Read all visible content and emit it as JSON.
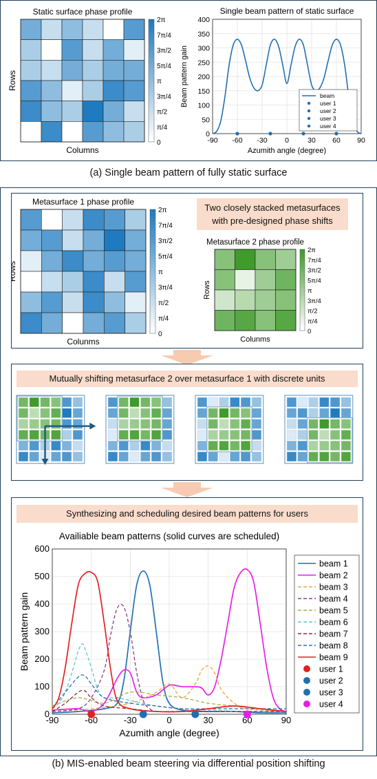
{
  "colors": {
    "blue_dark": "#1f7bc0",
    "green_dark": "#3f9b2a",
    "banner_bg": "#f9dccb",
    "frame": "#1f3f57",
    "arrow_fill": "#f7cbb1",
    "beam_blue": "#1f6fb2",
    "beam_magenta": "#e81ee8",
    "beam_red": "#e32020",
    "user_red": "#e32020",
    "user_blue": "#1f6fb2",
    "user_magenta": "#e81ee8"
  },
  "caption_a": "(a) Single beam pattern of fully static surface",
  "caption_b": "(b) MIS-enabled beam steering via differential position shifting",
  "static_heatmap": {
    "title": "Static surface phase profile",
    "xlabel": "Columns",
    "ylabel": "Rows",
    "colorbar_ticks": [
      "2π",
      "7π/4",
      "3π/2",
      "5π/4",
      "π",
      "3π/4",
      "π/2",
      "π/4",
      "0"
    ],
    "grid": [
      [
        5,
        2,
        4,
        2,
        0,
        6
      ],
      [
        3,
        0,
        6,
        2,
        5,
        1
      ],
      [
        3,
        2,
        5,
        3,
        5,
        5
      ],
      [
        6,
        4,
        1,
        3,
        7,
        6
      ],
      [
        7,
        4,
        3,
        8,
        5,
        2
      ],
      [
        0,
        7,
        0,
        6,
        4,
        3
      ]
    ]
  },
  "static_beam": {
    "title": "Single beam pattern of static surface",
    "xlabel": "Azumith angle (degree)",
    "ylabel": "Beam pattern gain",
    "x_ticks": [
      "-90",
      "-60",
      "-30",
      "0",
      "30",
      "60",
      "90"
    ],
    "y_ticks": [
      "0",
      "50",
      "100",
      "150",
      "200",
      "250",
      "300",
      "350",
      "400"
    ],
    "legend": [
      "beam",
      "user 1",
      "user 2",
      "user 3",
      "user 4"
    ]
  },
  "chart_data": [
    {
      "type": "line",
      "title": "Single beam pattern of static surface",
      "xlabel": "Azumith angle (degree)",
      "ylabel": "Beam pattern gain",
      "xlim": [
        -90,
        90
      ],
      "ylim": [
        0,
        400
      ],
      "grid": true,
      "legend_position": "bottom-right",
      "series": [
        {
          "name": "beam",
          "x": [
            -90,
            -85,
            -80,
            -75,
            -70,
            -65,
            -60,
            -55,
            -50,
            -45,
            -40,
            -35,
            -30,
            -25,
            -20,
            -15,
            -10,
            -5,
            0,
            5,
            10,
            15,
            20,
            25,
            30,
            35,
            40,
            45,
            50,
            55,
            60,
            65,
            70,
            75,
            80,
            85,
            90
          ],
          "y": [
            0,
            8,
            45,
            130,
            240,
            310,
            330,
            310,
            255,
            195,
            160,
            150,
            170,
            240,
            310,
            330,
            305,
            240,
            175,
            240,
            305,
            330,
            310,
            240,
            170,
            150,
            160,
            195,
            255,
            310,
            330,
            310,
            240,
            130,
            45,
            8,
            0
          ]
        }
      ],
      "users": {
        "user 1": -60,
        "user 2": -20,
        "user 3": 20,
        "user 4": 60
      }
    },
    {
      "type": "line",
      "title": "Availiable beam patterns (solid curves are scheduled)",
      "xlabel": "Azumith angle (degree)",
      "ylabel": "Beam pattern gain",
      "xlim": [
        -90,
        90
      ],
      "ylim": [
        0,
        600
      ],
      "grid": true,
      "legend_position": "right",
      "series": [
        {
          "name": "beam 1",
          "style": "solid",
          "color": "#1f6fb2",
          "x": [
            -90,
            -70,
            -50,
            -40,
            -35,
            -30,
            -25,
            -20,
            -15,
            -10,
            -5,
            0,
            10,
            30,
            50,
            70,
            90
          ],
          "y": [
            5,
            10,
            20,
            40,
            120,
            300,
            470,
            520,
            470,
            300,
            120,
            40,
            15,
            10,
            10,
            5,
            5
          ]
        },
        {
          "name": "beam 2",
          "style": "solid",
          "color": "#e81ee8",
          "x": [
            -90,
            -70,
            -60,
            -50,
            -40,
            -35,
            -30,
            -25,
            -20,
            -10,
            0,
            10,
            20,
            25,
            30,
            35,
            40,
            45,
            50,
            55,
            60,
            65,
            70,
            75,
            80,
            85,
            90
          ],
          "y": [
            15,
            20,
            10,
            40,
            130,
            160,
            150,
            80,
            60,
            70,
            105,
            100,
            100,
            95,
            70,
            100,
            200,
            330,
            460,
            515,
            525,
            480,
            330,
            170,
            60,
            20,
            10
          ]
        },
        {
          "name": "beam 3",
          "style": "dashed",
          "color": "#e8a640",
          "x": [
            -90,
            -60,
            -30,
            -10,
            0,
            10,
            20,
            25,
            30,
            35,
            40,
            50,
            60,
            90
          ],
          "y": [
            10,
            20,
            40,
            80,
            110,
            60,
            110,
            160,
            175,
            150,
            90,
            40,
            20,
            10
          ]
        },
        {
          "name": "beam 4",
          "style": "dashed",
          "color": "#8a3a8a",
          "x": [
            -90,
            -70,
            -60,
            -50,
            -45,
            -40,
            -35,
            -30,
            -25,
            -20,
            -15,
            -10,
            0,
            30,
            60,
            90
          ],
          "y": [
            10,
            20,
            60,
            160,
            290,
            385,
            390,
            300,
            150,
            50,
            20,
            10,
            10,
            10,
            10,
            10
          ]
        },
        {
          "name": "beam 5",
          "style": "dashed",
          "color": "#a6b03a",
          "x": [
            -90,
            -70,
            -50,
            -30,
            -10,
            10,
            30,
            50,
            70,
            90
          ],
          "y": [
            30,
            60,
            40,
            80,
            70,
            60,
            40,
            30,
            20,
            10
          ]
        },
        {
          "name": "beam 6",
          "style": "dashed",
          "color": "#5ec3d9",
          "x": [
            -90,
            -85,
            -80,
            -75,
            -70,
            -67,
            -65,
            -60,
            -55,
            -50,
            -40,
            -30,
            -10,
            10,
            30,
            60,
            90
          ],
          "y": [
            20,
            40,
            80,
            150,
            230,
            255,
            240,
            170,
            90,
            60,
            60,
            50,
            30,
            20,
            15,
            10,
            10
          ]
        },
        {
          "name": "beam 7",
          "style": "dashed",
          "color": "#8a2a3a",
          "x": [
            -90,
            -80,
            -70,
            -65,
            -60,
            -50,
            -30,
            -10,
            10,
            30,
            60,
            90
          ],
          "y": [
            10,
            40,
            80,
            85,
            60,
            30,
            20,
            10,
            10,
            10,
            10,
            10
          ]
        },
        {
          "name": "beam 8",
          "style": "dashed",
          "color": "#2a6fa8",
          "x": [
            -90,
            -80,
            -70,
            -65,
            -60,
            -50,
            -30,
            -10,
            10,
            30,
            60,
            90
          ],
          "y": [
            20,
            80,
            135,
            140,
            110,
            60,
            40,
            30,
            20,
            20,
            20,
            20
          ]
        },
        {
          "name": "beam 9",
          "style": "solid",
          "color": "#e32020",
          "x": [
            -90,
            -85,
            -80,
            -75,
            -70,
            -65,
            -60,
            -55,
            -50,
            -45,
            -40,
            -30,
            -10,
            10,
            30,
            50,
            70,
            90
          ],
          "y": [
            20,
            60,
            170,
            330,
            470,
            510,
            515,
            480,
            330,
            160,
            50,
            20,
            10,
            10,
            20,
            30,
            20,
            10
          ]
        }
      ],
      "users": [
        {
          "name": "user 1",
          "x": -60,
          "color": "#e32020"
        },
        {
          "name": "user 2",
          "x": -20,
          "color": "#1f6fb2"
        },
        {
          "name": "user 3",
          "x": 20,
          "color": "#1f6fb2"
        },
        {
          "name": "user 4",
          "x": 60,
          "color": "#e81ee8"
        }
      ]
    }
  ],
  "ms1": {
    "title": "Metasurface 1 phase profile",
    "xlabel": "Colunms",
    "ylabel": "Rows",
    "colorbar_ticks": [
      "2π",
      "7π/4",
      "3π/2",
      "5π/4",
      "π",
      "3π/4",
      "π/2",
      "π/4",
      "0"
    ],
    "grid": [
      [
        6,
        0,
        2,
        7,
        6,
        3
      ],
      [
        5,
        6,
        2,
        5,
        8,
        5
      ],
      [
        1,
        5,
        7,
        5,
        6,
        5
      ],
      [
        0,
        2,
        3,
        7,
        2,
        6
      ],
      [
        4,
        6,
        2,
        7,
        4,
        1
      ],
      [
        7,
        5,
        0,
        5,
        6,
        3
      ]
    ]
  },
  "ms2": {
    "title": "Metasurface 2 phase profile",
    "xlabel": "Colunms",
    "ylabel": "Rows",
    "colorbar_ticks": [
      "2π",
      "7π/4",
      "3π/2",
      "5π/4",
      "π",
      "3π/4",
      "π/2",
      "π/4",
      "0"
    ],
    "grid": [
      [
        5,
        8,
        5,
        4
      ],
      [
        5,
        1,
        4,
        6
      ],
      [
        2,
        3,
        4,
        5
      ],
      [
        6,
        7,
        5,
        7
      ]
    ]
  },
  "banner_stacked": "Two closely stacked  metasurfaces with pre-designed phase shifts",
  "banner_shift": "Mutually shifting metasurface 2 over metasurface 1 with discrete units",
  "banner_sched": "Synthesizing and scheduling desired beam patterns for users",
  "sched_plot": {
    "title": "Availiable beam patterns (solid curves are scheduled)",
    "xlabel": "Azumith angle (degree)",
    "ylabel": "Beam pattern gain",
    "x_ticks": [
      "-90",
      "-60",
      "-30",
      "0",
      "30",
      "60",
      "90"
    ],
    "y_ticks": [
      "0",
      "100",
      "200",
      "300",
      "400",
      "500",
      "600"
    ],
    "legend": [
      "beam 1",
      "beam 2",
      "beam 3",
      "beam 4",
      "beam 5",
      "beam 6",
      "beam 7",
      "beam 8",
      "beam 9",
      "user 1",
      "user 2",
      "user 3",
      "user 4"
    ]
  }
}
